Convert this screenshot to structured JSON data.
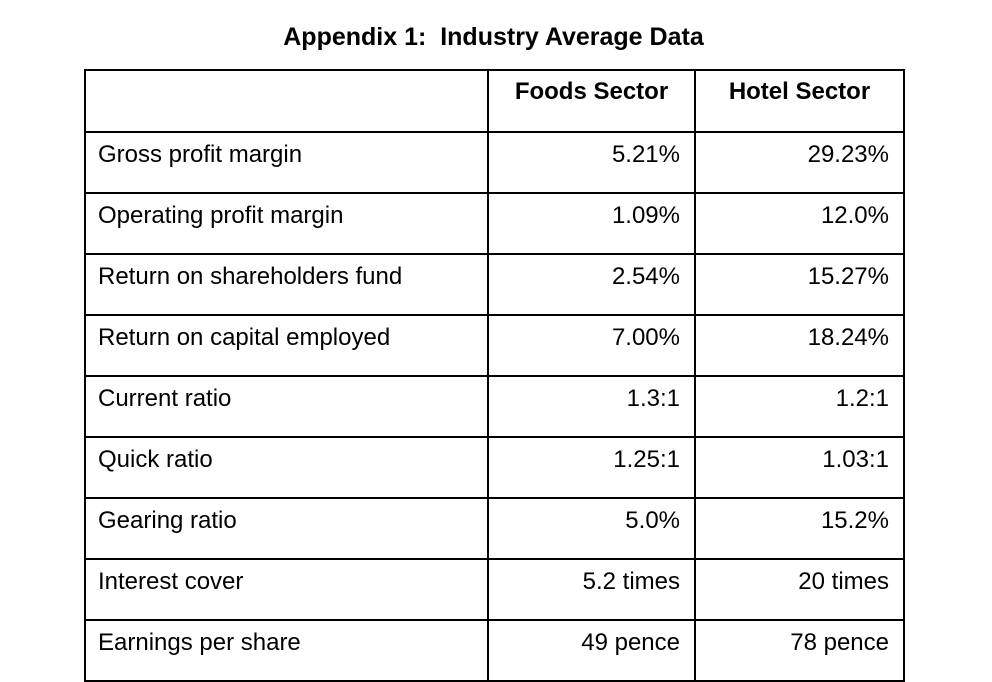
{
  "title": "Appendix 1:  Industry Average Data",
  "table": {
    "columns": [
      "",
      "Foods Sector",
      "Hotel Sector"
    ],
    "rows": [
      {
        "label": "Gross profit margin",
        "foods": "5.21%",
        "hotel": "29.23%"
      },
      {
        "label": "Operating profit margin",
        "foods": "1.09%",
        "hotel": "12.0%"
      },
      {
        "label": "Return on shareholders fund",
        "foods": "2.54%",
        "hotel": "15.27%"
      },
      {
        "label": "Return on capital employed",
        "foods": "7.00%",
        "hotel": "18.24%"
      },
      {
        "label": "Current ratio",
        "foods": "1.3:1",
        "hotel": "1.2:1"
      },
      {
        "label": "Quick ratio",
        "foods": "1.25:1",
        "hotel": "1.03:1"
      },
      {
        "label": "Gearing ratio",
        "foods": "5.0%",
        "hotel": "15.2%"
      },
      {
        "label": "Interest cover",
        "foods": "5.2 times",
        "hotel": "20 times"
      },
      {
        "label": "Earnings per share",
        "foods": "49 pence",
        "hotel": "78 pence"
      }
    ]
  }
}
